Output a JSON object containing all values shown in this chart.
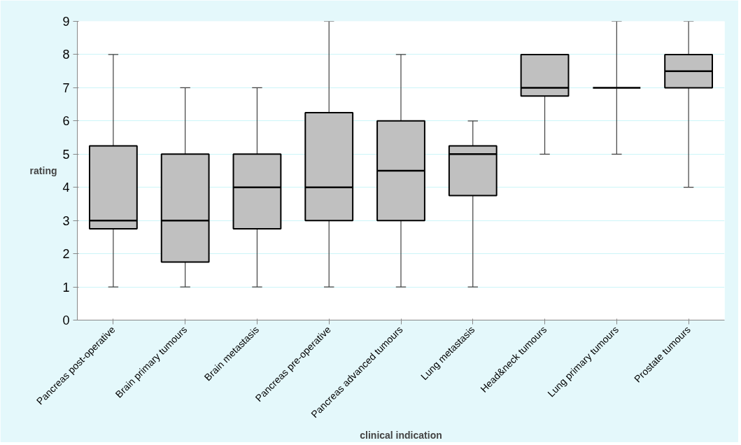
{
  "chart_data": {
    "type": "box",
    "xlabel": "clinical indication",
    "ylabel": "rating",
    "categories": [
      "Pancreas post-operative",
      "Brain primary tumours",
      "Brain metastasis",
      "Pancreas pre-operative",
      "Pancreas advanced tumours",
      "Lung metastasis",
      "Head&neck tumours",
      "Lung primary tumours",
      "Prostate tumours"
    ],
    "boxes": [
      {
        "low": 1,
        "q1": 2.75,
        "median": 3,
        "q3": 5.25,
        "high": 8
      },
      {
        "low": 1,
        "q1": 1.75,
        "median": 3,
        "q3": 5,
        "high": 7
      },
      {
        "low": 1,
        "q1": 2.75,
        "median": 4,
        "q3": 5,
        "high": 7
      },
      {
        "low": 1,
        "q1": 3,
        "median": 4,
        "q3": 6.25,
        "high": 9
      },
      {
        "low": 1,
        "q1": 3,
        "median": 4.5,
        "q3": 6,
        "high": 8
      },
      {
        "low": 1,
        "q1": 3.75,
        "median": 5,
        "q3": 5.25,
        "high": 6
      },
      {
        "low": 5,
        "q1": 6.75,
        "median": 7,
        "q3": 8,
        "high": 8
      },
      {
        "low": 5,
        "q1": 7,
        "median": 7,
        "q3": 7,
        "high": 9
      },
      {
        "low": 4,
        "q1": 7,
        "median": 7.5,
        "q3": 8,
        "high": 9
      }
    ],
    "color": "#c0c0c0",
    "ylim": [
      0,
      9
    ],
    "yticks": [
      0,
      1,
      2,
      3,
      4,
      5,
      6,
      7,
      8,
      9
    ],
    "grid": "y"
  }
}
